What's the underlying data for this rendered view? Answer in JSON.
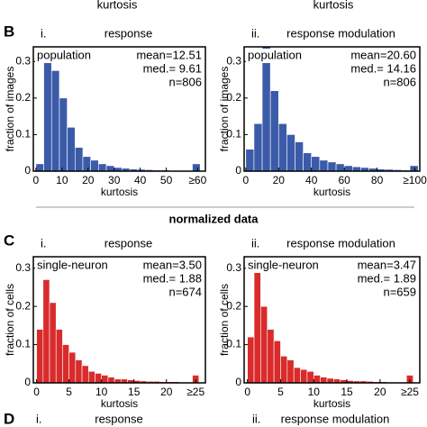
{
  "top_fragment": [
    "kurtosis",
    "kurtosis"
  ],
  "panels": [
    "B",
    "C",
    "D"
  ],
  "section_title": "normalized data",
  "panel_d": {
    "left": {
      "roman": "i.",
      "title": "response"
    },
    "right": {
      "roman": "ii.",
      "title": "response modulation"
    }
  },
  "chart_data": [
    {
      "type": "histogram",
      "roman": "i.",
      "title": "response",
      "legend": "population",
      "stats": [
        "mean=12.51",
        "med.= 9.61",
        "n=806"
      ],
      "xlabel": "kurtosis",
      "ylabel": "fraction of images",
      "color": "#3b5ba9",
      "bins": [
        0,
        3,
        6,
        9,
        12,
        15,
        18,
        21,
        24,
        27,
        30,
        33,
        36,
        39,
        42,
        45,
        48,
        51,
        54,
        57,
        60,
        63
      ],
      "values": [
        0.02,
        0.33,
        0.275,
        0.2,
        0.12,
        0.065,
        0.04,
        0.03,
        0.02,
        0.015,
        0.01,
        0.008,
        0.006,
        0.005,
        0.004,
        0.003,
        0.003,
        0.002,
        0.002,
        0.002,
        0.02
      ],
      "xlim": [
        -1,
        65
      ],
      "ylim": [
        0,
        0.34
      ],
      "xticks": [
        0,
        10,
        20,
        30,
        40,
        50,
        {
          "value": 62,
          "label": "≥60"
        }
      ],
      "yticks": [
        0,
        0.1,
        0.2,
        0.3
      ]
    },
    {
      "type": "histogram",
      "roman": "ii.",
      "title": "response modulation",
      "legend": "population",
      "stats": [
        "mean=20.60",
        "med.= 14.16",
        "n=806"
      ],
      "xlabel": "kurtosis",
      "ylabel": "fraction of images",
      "color": "#3b5ba9",
      "bins": [
        0,
        5,
        10,
        15,
        20,
        25,
        30,
        35,
        40,
        45,
        50,
        55,
        60,
        65,
        70,
        75,
        80,
        85,
        90,
        95,
        100,
        105
      ],
      "values": [
        0.06,
        0.13,
        0.34,
        0.22,
        0.13,
        0.1,
        0.08,
        0.05,
        0.04,
        0.03,
        0.025,
        0.02,
        0.015,
        0.012,
        0.01,
        0.008,
        0.006,
        0.005,
        0.004,
        0.003,
        0.015
      ],
      "xlim": [
        -1,
        106
      ],
      "ylim": [
        0,
        0.34
      ],
      "xticks": [
        0,
        20,
        40,
        60,
        80,
        {
          "value": 103,
          "label": "≥100"
        }
      ],
      "yticks": [
        0,
        0.1,
        0.2,
        0.3
      ]
    },
    {
      "type": "histogram",
      "roman": "i.",
      "title": "response",
      "legend": "single-neuron",
      "stats": [
        "mean=3.50",
        "med.= 1.88",
        "n=674"
      ],
      "xlabel": "kurtosis",
      "ylabel": "fraction of cells",
      "color": "#d92b2b",
      "bins": [
        0,
        1,
        2,
        3,
        4,
        5,
        6,
        7,
        8,
        9,
        10,
        11,
        12,
        13,
        14,
        15,
        16,
        17,
        18,
        19,
        20,
        21,
        22,
        23,
        24,
        25
      ],
      "values": [
        0.14,
        0.27,
        0.21,
        0.14,
        0.1,
        0.08,
        0.06,
        0.045,
        0.03,
        0.025,
        0.02,
        0.015,
        0.01,
        0.01,
        0.008,
        0.006,
        0.005,
        0.004,
        0.004,
        0.003,
        0.003,
        0.003,
        0.002,
        0.002,
        0.02
      ],
      "xlim": [
        -0.5,
        26
      ],
      "ylim": [
        0,
        0.33
      ],
      "xticks": [
        0,
        5,
        10,
        15,
        20,
        {
          "value": 24.5,
          "label": "≥25"
        }
      ],
      "yticks": [
        0,
        0.1,
        0.2,
        0.3
      ]
    },
    {
      "type": "histogram",
      "roman": "ii.",
      "title": "response modulation",
      "legend": "single-neuron",
      "stats": [
        "mean=3.47",
        "med.= 1.89",
        "n=659"
      ],
      "xlabel": "kurtosis",
      "ylabel": "fraction of cells",
      "color": "#d92b2b",
      "bins": [
        0,
        1,
        2,
        3,
        4,
        5,
        6,
        7,
        8,
        9,
        10,
        11,
        12,
        13,
        14,
        15,
        16,
        17,
        18,
        19,
        20,
        21,
        22,
        23,
        24,
        25
      ],
      "values": [
        0.12,
        0.29,
        0.2,
        0.14,
        0.11,
        0.07,
        0.06,
        0.04,
        0.035,
        0.03,
        0.02,
        0.015,
        0.012,
        0.01,
        0.008,
        0.006,
        0.005,
        0.005,
        0.004,
        0.003,
        0.003,
        0.002,
        0.002,
        0.002,
        0.02
      ],
      "xlim": [
        -0.5,
        26
      ],
      "ylim": [
        0,
        0.33
      ],
      "xticks": [
        0,
        5,
        10,
        15,
        20,
        {
          "value": 24.5,
          "label": "≥25"
        }
      ],
      "yticks": [
        0,
        0.1,
        0.2,
        0.3
      ]
    }
  ]
}
